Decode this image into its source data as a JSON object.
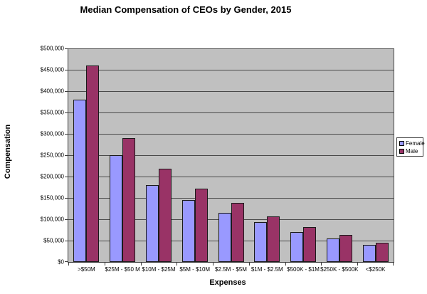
{
  "title": "Median Compensation of CEOs by Gender, 2015",
  "chart_data": {
    "type": "bar",
    "title": "Median Compensation of CEOs by Gender, 2015",
    "xlabel": "Expenses",
    "ylabel": "Compensation",
    "categories": [
      ">$50M",
      "$25M - $50 M",
      "$10M - $25M",
      "$5M - $10M",
      "$2.5M - $5M",
      "$1M - $2.5M",
      "$500K - $1M",
      "$250K - $500K",
      "<$250K"
    ],
    "series": [
      {
        "name": "Female",
        "color": "#9999FF",
        "values": [
          380000,
          250000,
          180000,
          145000,
          115000,
          93000,
          70000,
          55000,
          40000
        ]
      },
      {
        "name": "Male",
        "color": "#993366",
        "values": [
          460000,
          290000,
          218000,
          172000,
          138000,
          107000,
          81000,
          63000,
          45000
        ]
      }
    ],
    "ylim": [
      0,
      500000
    ],
    "ytick_step": 50000,
    "ytick_labels": [
      "$0",
      "$50,000",
      "$100,000",
      "$150,000",
      "$200,000",
      "$250,000",
      "$300,000",
      "$350,000",
      "$400,000",
      "$450,000",
      "$500,000"
    ],
    "grid": true,
    "legend_position": "right",
    "plot_bg_color": "#C0C0C0",
    "gridline_color": "#4a4a4a"
  }
}
